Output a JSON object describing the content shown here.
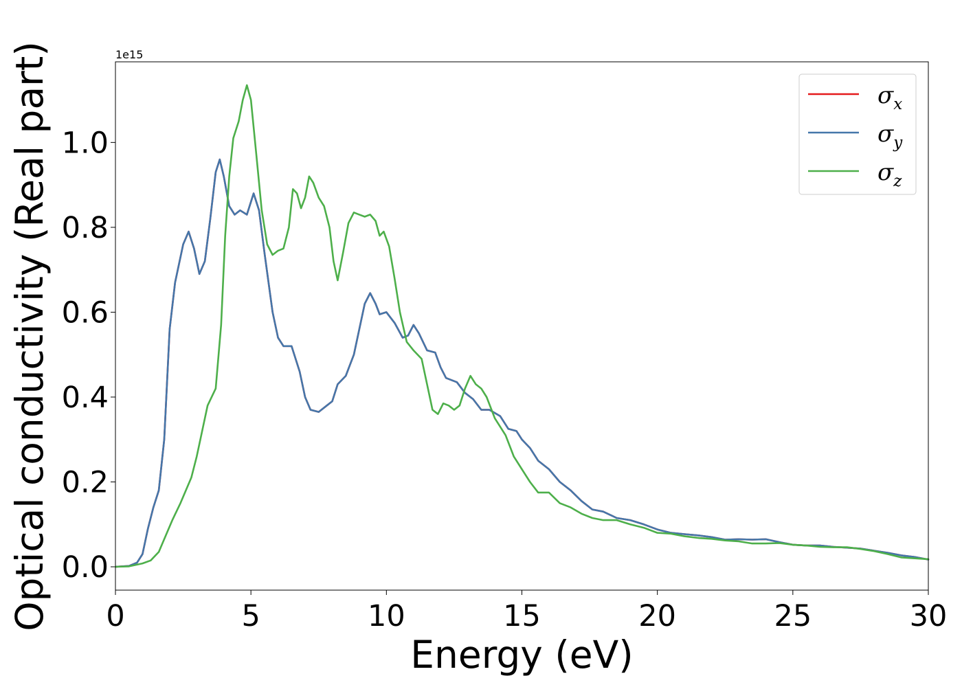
{
  "chart_data": {
    "type": "line",
    "title": "",
    "xlabel": "Energy (eV)",
    "ylabel": "Optical conductivity (Real part)",
    "y_offset_text": "1e15",
    "xlim": [
      0,
      30
    ],
    "ylim": [
      -0.055,
      1.19
    ],
    "y_scale_factor": 1000000000000000.0,
    "xticks": [
      0,
      5,
      10,
      15,
      20,
      25,
      30
    ],
    "xtick_labels": [
      "0",
      "5",
      "10",
      "15",
      "20",
      "25",
      "30"
    ],
    "yticks": [
      0.0,
      0.2,
      0.4,
      0.6,
      0.8,
      1.0
    ],
    "ytick_labels": [
      "0.0",
      "0.2",
      "0.4",
      "0.6",
      "0.8",
      "1.0"
    ],
    "grid": false,
    "legend_position": "top-right",
    "series": [
      {
        "name": "σx",
        "legend_symbol": "σ",
        "legend_subscript": "x",
        "color": "#e41a1c",
        "points": [
          [
            0,
            0
          ],
          [
            0.5,
            0.002
          ],
          [
            0.8,
            0.01
          ],
          [
            1.0,
            0.03
          ],
          [
            1.2,
            0.09
          ],
          [
            1.4,
            0.14
          ],
          [
            1.6,
            0.18
          ],
          [
            1.8,
            0.3
          ],
          [
            2.0,
            0.56
          ],
          [
            2.2,
            0.67
          ],
          [
            2.5,
            0.76
          ],
          [
            2.7,
            0.79
          ],
          [
            2.9,
            0.75
          ],
          [
            3.1,
            0.69
          ],
          [
            3.3,
            0.72
          ],
          [
            3.5,
            0.82
          ],
          [
            3.7,
            0.93
          ],
          [
            3.85,
            0.96
          ],
          [
            4.0,
            0.92
          ],
          [
            4.2,
            0.85
          ],
          [
            4.4,
            0.83
          ],
          [
            4.6,
            0.84
          ],
          [
            4.85,
            0.83
          ],
          [
            5.0,
            0.86
          ],
          [
            5.1,
            0.88
          ],
          [
            5.3,
            0.84
          ],
          [
            5.5,
            0.74
          ],
          [
            5.8,
            0.6
          ],
          [
            6.0,
            0.54
          ],
          [
            6.2,
            0.52
          ],
          [
            6.5,
            0.52
          ],
          [
            6.8,
            0.46
          ],
          [
            7.0,
            0.4
          ],
          [
            7.2,
            0.37
          ],
          [
            7.5,
            0.365
          ],
          [
            7.8,
            0.38
          ],
          [
            8.0,
            0.39
          ],
          [
            8.2,
            0.43
          ],
          [
            8.5,
            0.45
          ],
          [
            8.8,
            0.5
          ],
          [
            9.0,
            0.56
          ],
          [
            9.2,
            0.62
          ],
          [
            9.4,
            0.645
          ],
          [
            9.6,
            0.62
          ],
          [
            9.75,
            0.595
          ],
          [
            10.0,
            0.6
          ],
          [
            10.3,
            0.575
          ],
          [
            10.6,
            0.54
          ],
          [
            10.8,
            0.545
          ],
          [
            11.0,
            0.57
          ],
          [
            11.2,
            0.55
          ],
          [
            11.5,
            0.51
          ],
          [
            11.8,
            0.505
          ],
          [
            12.0,
            0.47
          ],
          [
            12.2,
            0.445
          ],
          [
            12.6,
            0.435
          ],
          [
            12.9,
            0.41
          ],
          [
            13.2,
            0.395
          ],
          [
            13.5,
            0.37
          ],
          [
            13.8,
            0.37
          ],
          [
            14.2,
            0.355
          ],
          [
            14.5,
            0.325
          ],
          [
            14.8,
            0.32
          ],
          [
            15.0,
            0.3
          ],
          [
            15.3,
            0.28
          ],
          [
            15.6,
            0.25
          ],
          [
            16.0,
            0.23
          ],
          [
            16.4,
            0.2
          ],
          [
            16.8,
            0.18
          ],
          [
            17.2,
            0.155
          ],
          [
            17.6,
            0.135
          ],
          [
            18.0,
            0.13
          ],
          [
            18.5,
            0.115
          ],
          [
            19.0,
            0.11
          ],
          [
            19.5,
            0.1
          ],
          [
            20.0,
            0.088
          ],
          [
            20.5,
            0.08
          ],
          [
            21.0,
            0.077
          ],
          [
            21.5,
            0.074
          ],
          [
            22.0,
            0.07
          ],
          [
            22.5,
            0.064
          ],
          [
            23.0,
            0.065
          ],
          [
            23.5,
            0.064
          ],
          [
            24.0,
            0.065
          ],
          [
            24.5,
            0.058
          ],
          [
            25.0,
            0.052
          ],
          [
            25.5,
            0.05
          ],
          [
            26.0,
            0.05
          ],
          [
            26.5,
            0.047
          ],
          [
            27.0,
            0.045
          ],
          [
            27.5,
            0.043
          ],
          [
            28.0,
            0.038
          ],
          [
            28.5,
            0.033
          ],
          [
            29.0,
            0.027
          ],
          [
            29.5,
            0.023
          ],
          [
            30.0,
            0.017
          ]
        ]
      },
      {
        "name": "σy",
        "legend_symbol": "σ",
        "legend_subscript": "y",
        "color": "#4477aa",
        "points": [
          [
            0,
            0
          ],
          [
            0.5,
            0.002
          ],
          [
            0.8,
            0.01
          ],
          [
            1.0,
            0.03
          ],
          [
            1.2,
            0.09
          ],
          [
            1.4,
            0.14
          ],
          [
            1.6,
            0.18
          ],
          [
            1.8,
            0.3
          ],
          [
            2.0,
            0.56
          ],
          [
            2.2,
            0.67
          ],
          [
            2.5,
            0.76
          ],
          [
            2.7,
            0.79
          ],
          [
            2.9,
            0.75
          ],
          [
            3.1,
            0.69
          ],
          [
            3.3,
            0.72
          ],
          [
            3.5,
            0.82
          ],
          [
            3.7,
            0.93
          ],
          [
            3.85,
            0.96
          ],
          [
            4.0,
            0.92
          ],
          [
            4.2,
            0.85
          ],
          [
            4.4,
            0.83
          ],
          [
            4.6,
            0.84
          ],
          [
            4.85,
            0.83
          ],
          [
            5.0,
            0.86
          ],
          [
            5.1,
            0.88
          ],
          [
            5.3,
            0.84
          ],
          [
            5.5,
            0.74
          ],
          [
            5.8,
            0.6
          ],
          [
            6.0,
            0.54
          ],
          [
            6.2,
            0.52
          ],
          [
            6.5,
            0.52
          ],
          [
            6.8,
            0.46
          ],
          [
            7.0,
            0.4
          ],
          [
            7.2,
            0.37
          ],
          [
            7.5,
            0.365
          ],
          [
            7.8,
            0.38
          ],
          [
            8.0,
            0.39
          ],
          [
            8.2,
            0.43
          ],
          [
            8.5,
            0.45
          ],
          [
            8.8,
            0.5
          ],
          [
            9.0,
            0.56
          ],
          [
            9.2,
            0.62
          ],
          [
            9.4,
            0.645
          ],
          [
            9.6,
            0.62
          ],
          [
            9.75,
            0.595
          ],
          [
            10.0,
            0.6
          ],
          [
            10.3,
            0.575
          ],
          [
            10.6,
            0.54
          ],
          [
            10.8,
            0.545
          ],
          [
            11.0,
            0.57
          ],
          [
            11.2,
            0.55
          ],
          [
            11.5,
            0.51
          ],
          [
            11.8,
            0.505
          ],
          [
            12.0,
            0.47
          ],
          [
            12.2,
            0.445
          ],
          [
            12.6,
            0.435
          ],
          [
            12.9,
            0.41
          ],
          [
            13.2,
            0.395
          ],
          [
            13.5,
            0.37
          ],
          [
            13.8,
            0.37
          ],
          [
            14.2,
            0.355
          ],
          [
            14.5,
            0.325
          ],
          [
            14.8,
            0.32
          ],
          [
            15.0,
            0.3
          ],
          [
            15.3,
            0.28
          ],
          [
            15.6,
            0.25
          ],
          [
            16.0,
            0.23
          ],
          [
            16.4,
            0.2
          ],
          [
            16.8,
            0.18
          ],
          [
            17.2,
            0.155
          ],
          [
            17.6,
            0.135
          ],
          [
            18.0,
            0.13
          ],
          [
            18.5,
            0.115
          ],
          [
            19.0,
            0.11
          ],
          [
            19.5,
            0.1
          ],
          [
            20.0,
            0.088
          ],
          [
            20.5,
            0.08
          ],
          [
            21.0,
            0.077
          ],
          [
            21.5,
            0.074
          ],
          [
            22.0,
            0.07
          ],
          [
            22.5,
            0.064
          ],
          [
            23.0,
            0.065
          ],
          [
            23.5,
            0.064
          ],
          [
            24.0,
            0.065
          ],
          [
            24.5,
            0.058
          ],
          [
            25.0,
            0.052
          ],
          [
            25.5,
            0.05
          ],
          [
            26.0,
            0.05
          ],
          [
            26.5,
            0.047
          ],
          [
            27.0,
            0.045
          ],
          [
            27.5,
            0.043
          ],
          [
            28.0,
            0.038
          ],
          [
            28.5,
            0.033
          ],
          [
            29.0,
            0.027
          ],
          [
            29.5,
            0.023
          ],
          [
            30.0,
            0.017
          ]
        ]
      },
      {
        "name": "σz",
        "legend_symbol": "σ",
        "legend_subscript": "z",
        "color": "#4daf4a",
        "points": [
          [
            0,
            0
          ],
          [
            0.5,
            0.001
          ],
          [
            1.0,
            0.008
          ],
          [
            1.3,
            0.015
          ],
          [
            1.6,
            0.035
          ],
          [
            1.9,
            0.08
          ],
          [
            2.1,
            0.11
          ],
          [
            2.4,
            0.15
          ],
          [
            2.8,
            0.21
          ],
          [
            3.0,
            0.26
          ],
          [
            3.2,
            0.32
          ],
          [
            3.4,
            0.38
          ],
          [
            3.7,
            0.42
          ],
          [
            3.9,
            0.57
          ],
          [
            4.05,
            0.78
          ],
          [
            4.2,
            0.92
          ],
          [
            4.35,
            1.01
          ],
          [
            4.55,
            1.05
          ],
          [
            4.7,
            1.1
          ],
          [
            4.85,
            1.135
          ],
          [
            5.0,
            1.1
          ],
          [
            5.2,
            0.97
          ],
          [
            5.4,
            0.84
          ],
          [
            5.6,
            0.76
          ],
          [
            5.8,
            0.735
          ],
          [
            6.0,
            0.745
          ],
          [
            6.2,
            0.75
          ],
          [
            6.4,
            0.8
          ],
          [
            6.55,
            0.89
          ],
          [
            6.7,
            0.88
          ],
          [
            6.85,
            0.845
          ],
          [
            7.0,
            0.87
          ],
          [
            7.15,
            0.92
          ],
          [
            7.3,
            0.905
          ],
          [
            7.5,
            0.87
          ],
          [
            7.7,
            0.85
          ],
          [
            7.9,
            0.8
          ],
          [
            8.05,
            0.72
          ],
          [
            8.2,
            0.675
          ],
          [
            8.4,
            0.74
          ],
          [
            8.6,
            0.81
          ],
          [
            8.8,
            0.835
          ],
          [
            9.0,
            0.83
          ],
          [
            9.2,
            0.825
          ],
          [
            9.4,
            0.83
          ],
          [
            9.6,
            0.815
          ],
          [
            9.75,
            0.78
          ],
          [
            9.9,
            0.79
          ],
          [
            10.1,
            0.755
          ],
          [
            10.3,
            0.68
          ],
          [
            10.5,
            0.6
          ],
          [
            10.75,
            0.53
          ],
          [
            11.0,
            0.51
          ],
          [
            11.3,
            0.49
          ],
          [
            11.5,
            0.43
          ],
          [
            11.7,
            0.37
          ],
          [
            11.9,
            0.36
          ],
          [
            12.1,
            0.385
          ],
          [
            12.3,
            0.38
          ],
          [
            12.5,
            0.37
          ],
          [
            12.7,
            0.38
          ],
          [
            12.9,
            0.42
          ],
          [
            13.1,
            0.45
          ],
          [
            13.3,
            0.43
          ],
          [
            13.5,
            0.42
          ],
          [
            13.7,
            0.4
          ],
          [
            14.0,
            0.35
          ],
          [
            14.4,
            0.31
          ],
          [
            14.7,
            0.26
          ],
          [
            15.0,
            0.23
          ],
          [
            15.3,
            0.2
          ],
          [
            15.6,
            0.175
          ],
          [
            16.0,
            0.175
          ],
          [
            16.4,
            0.15
          ],
          [
            16.8,
            0.14
          ],
          [
            17.2,
            0.125
          ],
          [
            17.6,
            0.115
          ],
          [
            18.0,
            0.11
          ],
          [
            18.5,
            0.11
          ],
          [
            19.0,
            0.1
          ],
          [
            19.5,
            0.092
          ],
          [
            20.0,
            0.08
          ],
          [
            20.5,
            0.078
          ],
          [
            21.0,
            0.072
          ],
          [
            21.5,
            0.068
          ],
          [
            22.0,
            0.066
          ],
          [
            22.5,
            0.062
          ],
          [
            23.0,
            0.06
          ],
          [
            23.5,
            0.055
          ],
          [
            24.0,
            0.055
          ],
          [
            24.5,
            0.056
          ],
          [
            25.0,
            0.052
          ],
          [
            25.5,
            0.05
          ],
          [
            26.0,
            0.047
          ],
          [
            26.5,
            0.046
          ],
          [
            27.0,
            0.046
          ],
          [
            27.5,
            0.042
          ],
          [
            28.0,
            0.037
          ],
          [
            28.5,
            0.03
          ],
          [
            29.0,
            0.022
          ],
          [
            29.5,
            0.02
          ],
          [
            30.0,
            0.018
          ]
        ]
      }
    ]
  }
}
